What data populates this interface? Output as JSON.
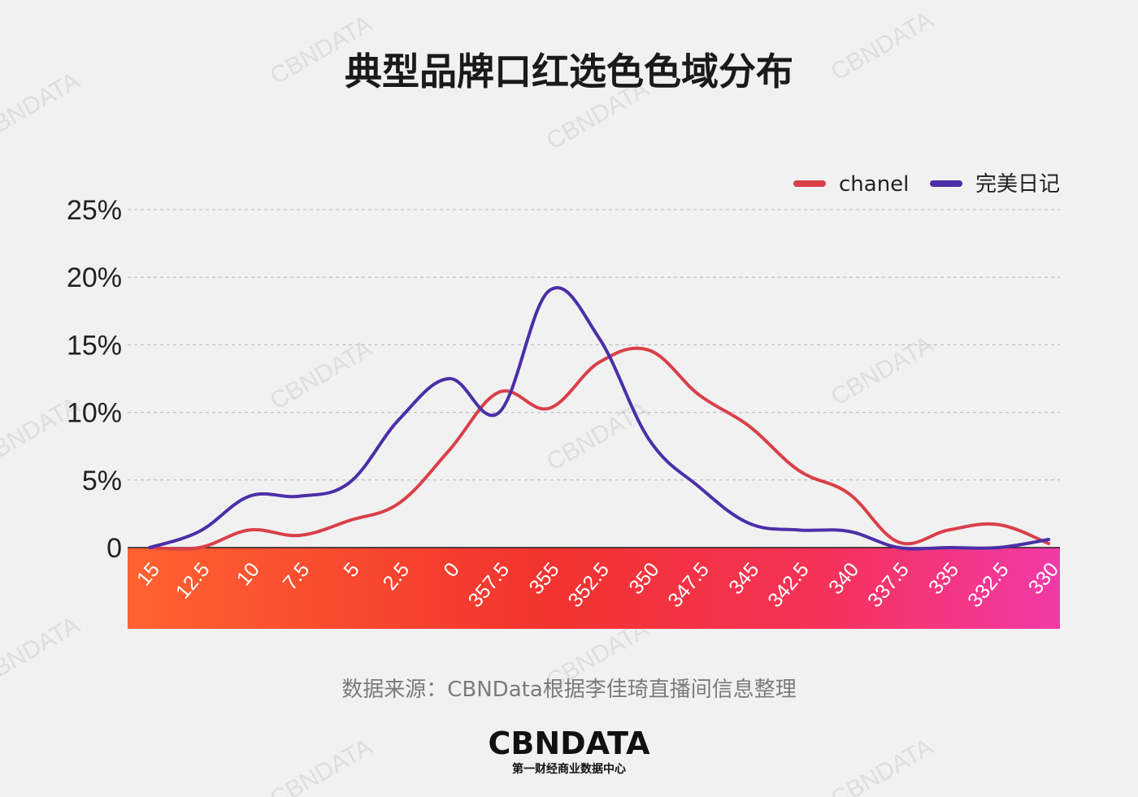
{
  "chart_data": {
    "type": "line",
    "title": "典型品牌口红选色色域分布",
    "xlabel": "",
    "ylabel": "",
    "categories": [
      "15",
      "12.5",
      "10",
      "7.5",
      "5",
      "2.5",
      "0",
      "357.5",
      "355",
      "352.5",
      "350",
      "347.5",
      "345",
      "342.5",
      "340",
      "337.5",
      "335",
      "332.5",
      "330"
    ],
    "y_ticks": [
      "0",
      "5%",
      "10%",
      "15%",
      "20%",
      "25%"
    ],
    "ylim": [
      0,
      25
    ],
    "grid": true,
    "legend_position": "top-right",
    "series": [
      {
        "name": "chanel",
        "color": "#d9404a",
        "values": [
          0,
          0,
          1.3,
          0.9,
          2.0,
          3.3,
          7.2,
          11.5,
          10.3,
          13.7,
          14.6,
          11.3,
          9.0,
          5.7,
          4.0,
          0.4,
          1.3,
          1.7,
          0.3
        ]
      },
      {
        "name": "完美日记",
        "color": "#4b2fa8",
        "values": [
          0,
          1.2,
          3.8,
          3.8,
          4.8,
          9.5,
          12.5,
          10.0,
          19.0,
          15.5,
          8.0,
          4.5,
          1.8,
          1.3,
          1.2,
          0,
          0,
          0,
          0.6
        ]
      }
    ]
  },
  "source": "数据来源：CBNData根据李佳琦直播间信息整理",
  "logo": {
    "main": "CBNDATA",
    "sub": "第一财经商业数据中心"
  },
  "watermark": "CBNDATA"
}
